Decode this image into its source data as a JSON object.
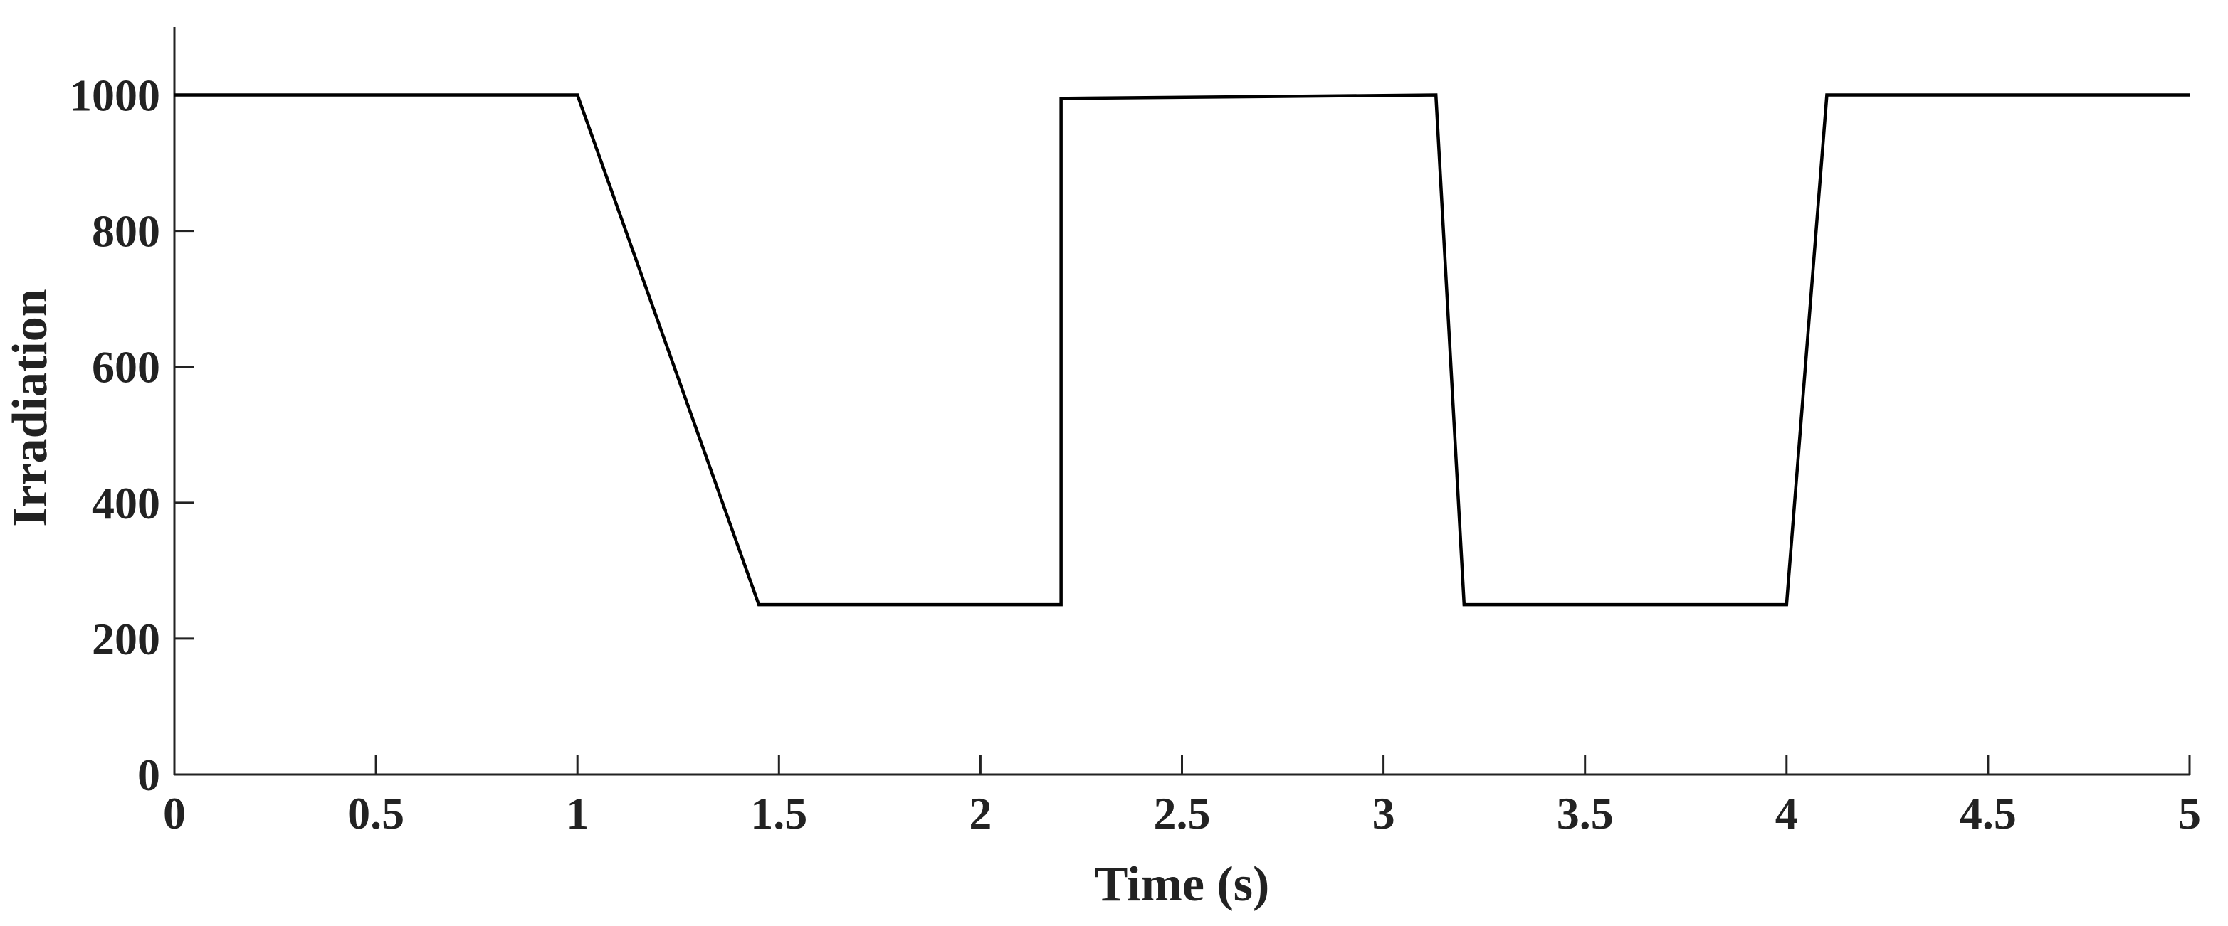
{
  "chart_data": {
    "type": "line",
    "title": "",
    "xlabel": "Time (s)",
    "ylabel": "Irradiation",
    "xlim": [
      0,
      5
    ],
    "ylim": [
      0,
      1100
    ],
    "xticks": [
      0,
      0.5,
      1,
      1.5,
      2,
      2.5,
      3,
      3.5,
      4,
      4.5,
      5
    ],
    "xtick_labels": [
      "0",
      "0.5",
      "1",
      "1.5",
      "2",
      "2.5",
      "3",
      "3.5",
      "4",
      "4.5",
      "5"
    ],
    "yticks": [
      0,
      200,
      400,
      600,
      800,
      1000
    ],
    "ytick_labels": [
      "0",
      "200",
      "400",
      "600",
      "800",
      "1000"
    ],
    "grid": false,
    "legend": "none",
    "series": [
      {
        "color": "#000000",
        "x": [
          0,
          1,
          1.45,
          2.2,
          2.2,
          3.13,
          3.2,
          4.0,
          4.1,
          5
        ],
        "y": [
          1000,
          1000,
          250,
          250,
          995,
          1000,
          250,
          250,
          1000,
          1000
        ]
      }
    ]
  }
}
